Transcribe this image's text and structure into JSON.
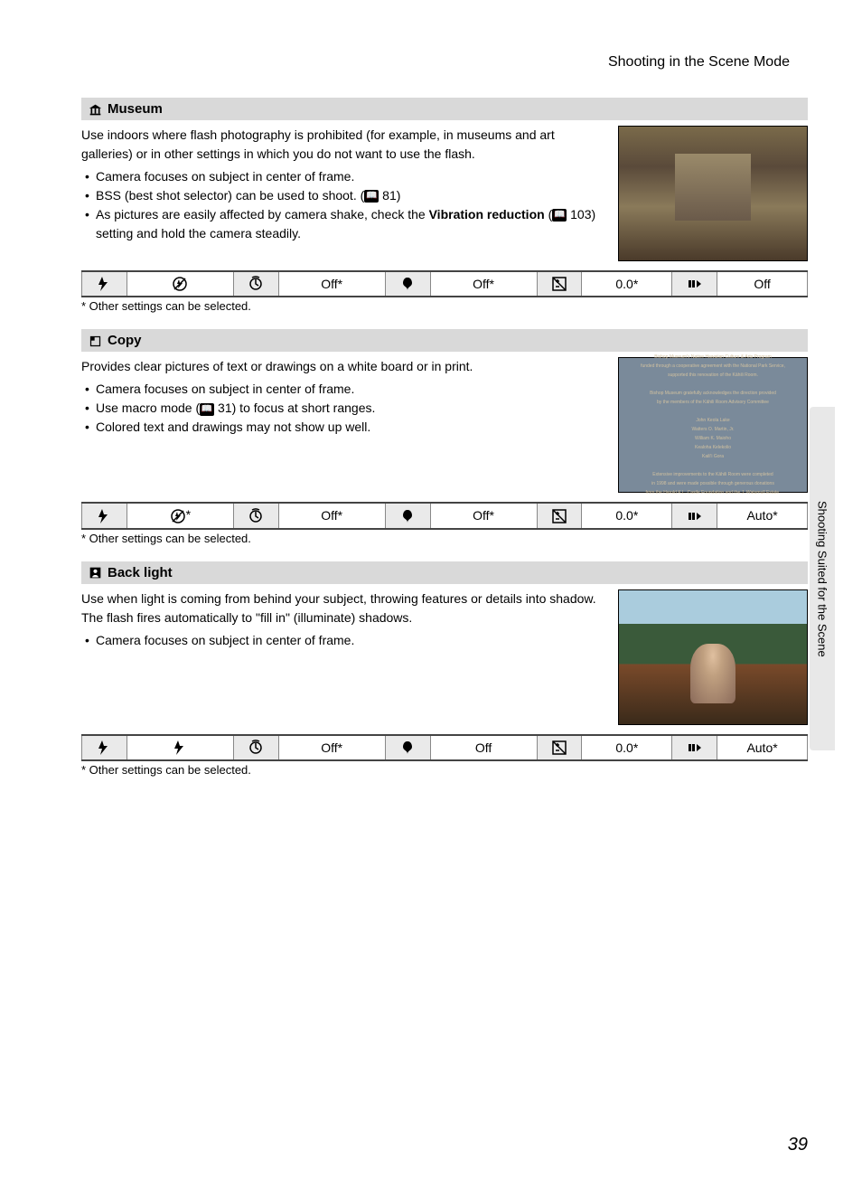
{
  "header": {
    "title": "Shooting in the Scene Mode"
  },
  "side_tab": {
    "label": "Shooting Suited for the Scene"
  },
  "page_number": "39",
  "sections": [
    {
      "icon": "museum-icon",
      "title": "Museum",
      "intro": "Use indoors where flash photography is prohibited (for example, in museums and art galleries) or in other settings in which you do not want to use the flash.",
      "bullets": [
        {
          "text": "Camera focuses on subject in center of frame."
        },
        {
          "text_a": "BSS (best shot selector) can be used to shoot. (",
          "ref": "81",
          "text_b": ")"
        },
        {
          "text_a": "As pictures are easily affected by camera shake, check the ",
          "bold": "Vibration reduction",
          "text_b": " (",
          "ref": "103",
          "text_c": ") setting and hold the camera steadily."
        }
      ],
      "table": {
        "flash_val_icon": "flash-off-icon",
        "timer": "Off*",
        "macro": "Off*",
        "exp": "0.0*",
        "iso": "Off"
      },
      "footnote": "*  Other settings can be selected."
    },
    {
      "icon": "copy-icon",
      "title": "Copy",
      "intro": "Provides clear pictures of text or drawings on a white board or in print.",
      "bullets": [
        {
          "text": "Camera focuses on subject in center of frame."
        },
        {
          "text_a": "Use macro mode (",
          "ref": "31",
          "text_b": ") to focus at short ranges."
        },
        {
          "text": "Colored text and drawings may not show up well."
        }
      ],
      "table": {
        "flash_val_icon": "flash-off-star-icon",
        "timer": "Off*",
        "macro": "Off*",
        "exp": "0.0*",
        "iso": "Auto*"
      },
      "footnote": "*  Other settings can be selected.",
      "plaque_lines": [
        "Bishop Museum's Native Hawaiian Culture & Arts Program",
        "funded through a cooperative agreement with the National Park Service,",
        "supported this renovation of the Kāhili Room.",
        "",
        "Bishop Museum gratefully acknowledges the direction provided",
        "by the members of the Kāhili Room Advisory Committee",
        "",
        "John Keola Lake",
        "Watters O. Martin, Jr.",
        "William K. Maioho",
        "Kealoha Kelekolio",
        "Kaili'i Gora",
        "",
        "Extensive improvements to the Kāhili Room were completed",
        "in 1998 and were made possible through generous donations",
        "from the Harold K.L. Castle Foundation and the J. Watumull Estate."
      ]
    },
    {
      "icon": "backlight-icon",
      "title": "Back light",
      "intro": "Use when light is coming from behind your subject, throwing features or details into shadow. The flash fires automatically to \"fill in\" (illuminate) shadows.",
      "bullets": [
        {
          "text": "Camera focuses on subject in center of frame."
        }
      ],
      "table": {
        "flash_val_icon": "flash-fill-icon",
        "timer": "Off*",
        "macro": "Off",
        "exp": "0.0*",
        "iso": "Auto*"
      },
      "footnote": "*  Other settings can be selected."
    }
  ]
}
